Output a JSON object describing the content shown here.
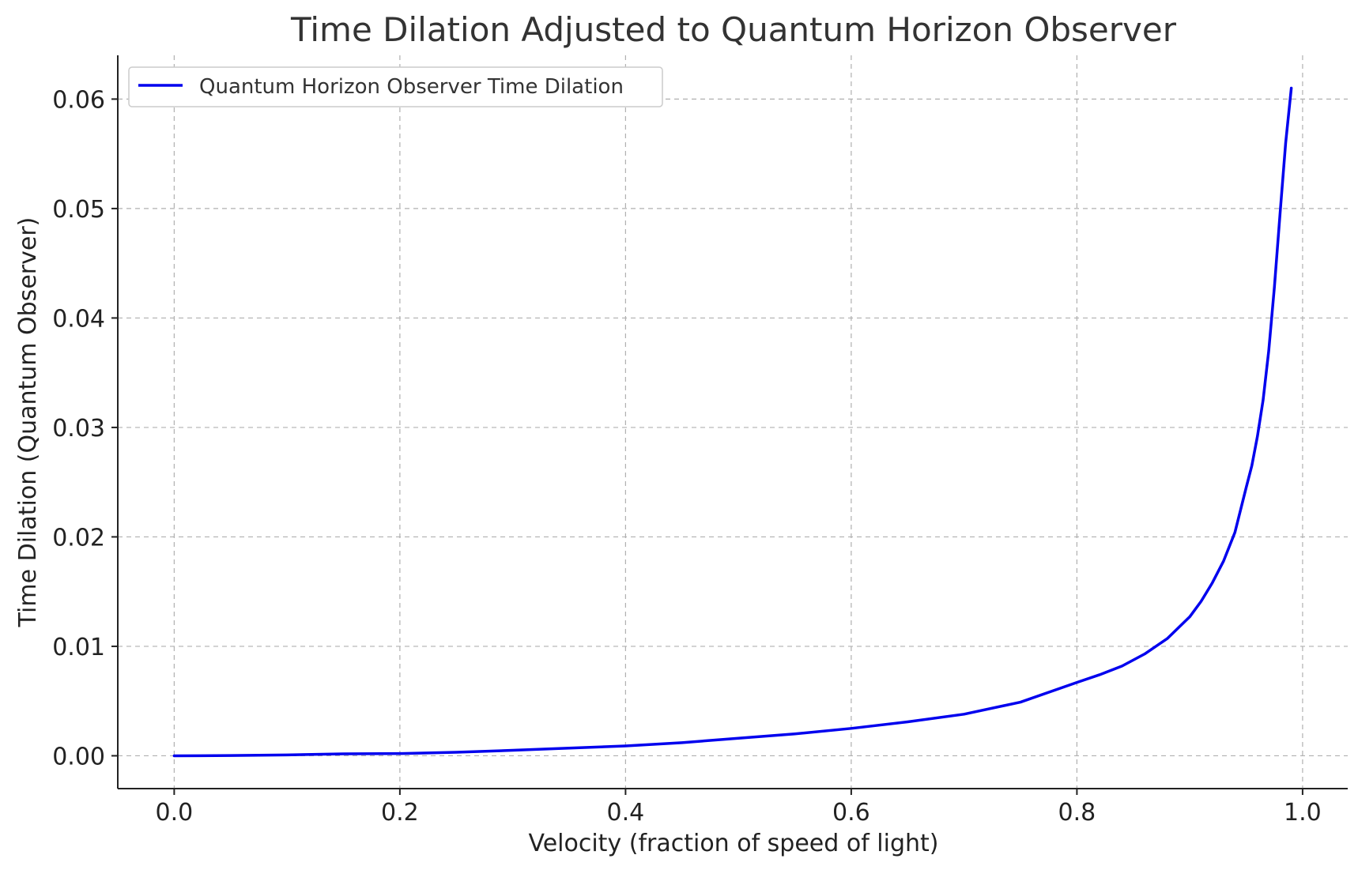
{
  "chart_data": {
    "type": "line",
    "title": "Time Dilation Adjusted to Quantum Horizon Observer",
    "xlabel": "Velocity (fraction of speed of light)",
    "ylabel": "Time Dilation (Quantum Observer)",
    "xlim": [
      -0.05,
      1.04
    ],
    "ylim": [
      -0.003,
      0.064
    ],
    "xticks": [
      0.0,
      0.2,
      0.4,
      0.6,
      0.8,
      1.0
    ],
    "xtick_labels": [
      "0.0",
      "0.2",
      "0.4",
      "0.6",
      "0.8",
      "1.0"
    ],
    "yticks": [
      0.0,
      0.01,
      0.02,
      0.03,
      0.04,
      0.05,
      0.06
    ],
    "ytick_labels": [
      "0.00",
      "0.01",
      "0.02",
      "0.03",
      "0.04",
      "0.05",
      "0.06"
    ],
    "grid": true,
    "legend_position": "top-left",
    "series": [
      {
        "name": "Quantum Horizon Observer Time Dilation",
        "color": "#0000ee",
        "x": [
          0.0,
          0.05,
          0.1,
          0.15,
          0.2,
          0.25,
          0.3,
          0.35,
          0.4,
          0.45,
          0.5,
          0.55,
          0.6,
          0.65,
          0.7,
          0.75,
          0.8,
          0.82,
          0.84,
          0.86,
          0.88,
          0.9,
          0.91,
          0.92,
          0.93,
          0.94,
          0.95,
          0.955,
          0.96,
          0.965,
          0.97,
          0.975,
          0.98,
          0.985,
          0.99
        ],
        "y": [
          0.0,
          2e-05,
          8e-05,
          0.00018,
          0.0002,
          0.00032,
          0.0005,
          0.0007,
          0.0009,
          0.0012,
          0.0016,
          0.002,
          0.0025,
          0.0031,
          0.0038,
          0.0049,
          0.0067,
          0.0074,
          0.0082,
          0.0093,
          0.0107,
          0.0127,
          0.0141,
          0.0158,
          0.0178,
          0.0204,
          0.0245,
          0.0265,
          0.0292,
          0.0325,
          0.037,
          0.0428,
          0.0495,
          0.056,
          0.061
        ]
      }
    ]
  }
}
